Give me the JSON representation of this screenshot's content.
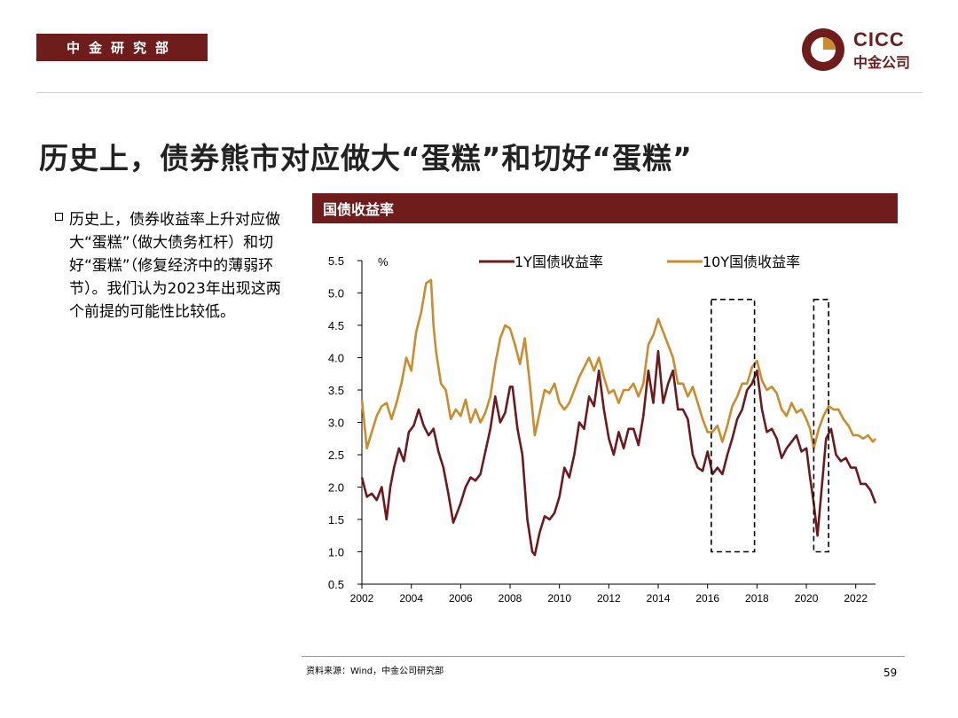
{
  "header": {
    "department": "中金研究部",
    "logo_en": "CICC",
    "logo_cn": "中金公司"
  },
  "slide": {
    "title": "历史上，债券熊市对应做大“蛋糕”和切好“蛋糕”",
    "bullet": "历史上，债券收益率上升对应做大“蛋糕”（做大债务杠杆）和切好“蛋糕”（修复经济中的薄弱环节）。我们认为2023年出现这两个前提的可能性比较低。"
  },
  "chart_header": "国债收益率",
  "colors": {
    "brand": "#6e1c1c",
    "series_1y": "#6b1a1d",
    "series_10y": "#c98d2e"
  },
  "chart_data": {
    "type": "line",
    "title": "国债收益率",
    "ylabel": "%",
    "xlabel": "",
    "ylim": [
      0.5,
      5.5
    ],
    "xlim": [
      2002,
      2022.8
    ],
    "yticks": [
      "0.5",
      "1.0",
      "1.5",
      "2.0",
      "2.5",
      "3.0",
      "3.5",
      "4.0",
      "4.5",
      "5.0",
      "5.5"
    ],
    "xticks": [
      "2002",
      "2004",
      "2006",
      "2008",
      "2010",
      "2012",
      "2014",
      "2016",
      "2018",
      "2020",
      "2022"
    ],
    "series": [
      {
        "name": "1Y国债收益率",
        "x": [
          2002.0,
          2002.2,
          2002.4,
          2002.6,
          2002.8,
          2003.0,
          2003.15,
          2003.3,
          2003.5,
          2003.7,
          2003.9,
          2004.1,
          2004.3,
          2004.5,
          2004.7,
          2004.9,
          2005.1,
          2005.3,
          2005.5,
          2005.7,
          2005.85,
          2006.0,
          2006.2,
          2006.4,
          2006.6,
          2006.8,
          2007.0,
          2007.2,
          2007.4,
          2007.6,
          2007.8,
          2008.0,
          2008.1,
          2008.3,
          2008.5,
          2008.7,
          2008.9,
          2009.0,
          2009.2,
          2009.4,
          2009.6,
          2009.8,
          2010.0,
          2010.2,
          2010.4,
          2010.6,
          2010.8,
          2011.0,
          2011.2,
          2011.4,
          2011.6,
          2011.8,
          2012.0,
          2012.2,
          2012.4,
          2012.6,
          2012.8,
          2013.0,
          2013.2,
          2013.4,
          2013.6,
          2013.8,
          2014.0,
          2014.2,
          2014.4,
          2014.6,
          2014.8,
          2015.0,
          2015.2,
          2015.4,
          2015.6,
          2015.8,
          2016.0,
          2016.2,
          2016.4,
          2016.6,
          2016.8,
          2017.0,
          2017.2,
          2017.4,
          2017.6,
          2017.8,
          2018.0,
          2018.2,
          2018.4,
          2018.6,
          2018.8,
          2019.0,
          2019.2,
          2019.4,
          2019.6,
          2019.8,
          2020.0,
          2020.15,
          2020.3,
          2020.45,
          2020.6,
          2020.8,
          2021.0,
          2021.2,
          2021.4,
          2021.6,
          2021.8,
          2022.0,
          2022.2,
          2022.4,
          2022.6,
          2022.8
        ],
        "values": [
          2.15,
          1.85,
          1.9,
          1.8,
          2.0,
          1.5,
          2.0,
          2.3,
          2.6,
          2.4,
          2.85,
          2.95,
          3.2,
          2.95,
          2.8,
          2.9,
          2.55,
          2.3,
          1.9,
          1.45,
          1.6,
          1.75,
          2.0,
          2.15,
          2.1,
          2.2,
          2.55,
          2.9,
          3.4,
          3.0,
          3.15,
          3.55,
          3.55,
          2.9,
          2.5,
          1.5,
          1.0,
          0.95,
          1.3,
          1.55,
          1.5,
          1.6,
          1.85,
          2.3,
          2.15,
          2.5,
          3.0,
          2.9,
          3.4,
          3.25,
          3.8,
          3.2,
          2.75,
          2.5,
          2.85,
          2.6,
          2.9,
          2.9,
          2.65,
          3.1,
          3.8,
          3.3,
          4.1,
          3.3,
          3.6,
          3.8,
          3.2,
          3.2,
          3.05,
          2.5,
          2.3,
          2.25,
          2.55,
          2.2,
          2.3,
          2.2,
          2.5,
          2.75,
          3.05,
          3.2,
          3.5,
          3.6,
          3.8,
          3.2,
          2.85,
          2.9,
          2.75,
          2.45,
          2.6,
          2.7,
          2.8,
          2.55,
          2.6,
          2.15,
          1.75,
          1.25,
          1.9,
          2.75,
          2.9,
          2.5,
          2.4,
          2.45,
          2.3,
          2.3,
          2.05,
          2.05,
          1.95,
          1.75
        ]
      },
      {
        "name": "10Y国债收益率",
        "x": [
          2002.0,
          2002.2,
          2002.4,
          2002.6,
          2002.8,
          2003.0,
          2003.2,
          2003.4,
          2003.6,
          2003.8,
          2004.0,
          2004.2,
          2004.4,
          2004.6,
          2004.8,
          2004.9,
          2005.0,
          2005.2,
          2005.4,
          2005.6,
          2005.8,
          2006.0,
          2006.2,
          2006.4,
          2006.6,
          2006.8,
          2007.0,
          2007.2,
          2007.4,
          2007.6,
          2007.8,
          2008.0,
          2008.2,
          2008.4,
          2008.6,
          2008.8,
          2009.0,
          2009.2,
          2009.4,
          2009.6,
          2009.8,
          2010.0,
          2010.2,
          2010.4,
          2010.6,
          2010.8,
          2011.0,
          2011.2,
          2011.4,
          2011.6,
          2011.8,
          2012.0,
          2012.2,
          2012.4,
          2012.6,
          2012.8,
          2013.0,
          2013.2,
          2013.4,
          2013.6,
          2013.8,
          2014.0,
          2014.2,
          2014.4,
          2014.6,
          2014.8,
          2015.0,
          2015.2,
          2015.4,
          2015.6,
          2015.8,
          2016.0,
          2016.2,
          2016.4,
          2016.6,
          2016.8,
          2017.0,
          2017.2,
          2017.4,
          2017.6,
          2017.8,
          2018.0,
          2018.2,
          2018.4,
          2018.6,
          2018.8,
          2019.0,
          2019.2,
          2019.4,
          2019.6,
          2019.8,
          2020.0,
          2020.15,
          2020.3,
          2020.5,
          2020.7,
          2020.9,
          2021.1,
          2021.3,
          2021.5,
          2021.7,
          2021.9,
          2022.1,
          2022.3,
          2022.5,
          2022.7,
          2022.8
        ],
        "values": [
          3.35,
          2.6,
          2.85,
          3.1,
          3.25,
          3.3,
          3.05,
          3.3,
          3.6,
          4.0,
          3.8,
          4.4,
          4.7,
          5.15,
          5.2,
          4.5,
          4.1,
          3.6,
          3.5,
          3.05,
          3.2,
          3.1,
          3.35,
          3.0,
          3.2,
          3.0,
          3.15,
          3.4,
          3.9,
          4.3,
          4.5,
          4.45,
          4.2,
          3.9,
          4.3,
          3.6,
          2.8,
          3.15,
          3.5,
          3.45,
          3.6,
          3.3,
          3.2,
          3.3,
          3.5,
          3.7,
          3.85,
          4.0,
          3.8,
          4.0,
          3.7,
          3.45,
          3.5,
          3.3,
          3.5,
          3.5,
          3.6,
          3.4,
          3.6,
          4.2,
          4.35,
          4.6,
          4.4,
          4.2,
          4.0,
          3.6,
          3.6,
          3.4,
          3.55,
          3.3,
          3.05,
          2.85,
          2.85,
          2.95,
          2.7,
          2.95,
          3.25,
          3.4,
          3.6,
          3.6,
          3.85,
          3.95,
          3.65,
          3.5,
          3.55,
          3.45,
          3.2,
          3.1,
          3.3,
          3.15,
          3.2,
          3.05,
          2.9,
          2.6,
          2.9,
          3.1,
          3.25,
          3.2,
          3.2,
          3.05,
          2.95,
          2.8,
          2.8,
          2.75,
          2.8,
          2.7,
          2.75
        ]
      }
    ],
    "highlight_boxes": [
      {
        "x_start": 2016.15,
        "x_end": 2017.9,
        "y_start": 1.0,
        "y_end": 4.9
      },
      {
        "x_start": 2020.3,
        "x_end": 2020.9,
        "y_start": 1.0,
        "y_end": 4.9
      }
    ]
  },
  "footer": {
    "source": "资料来源：Wind，中金公司研究部",
    "page": "59"
  }
}
